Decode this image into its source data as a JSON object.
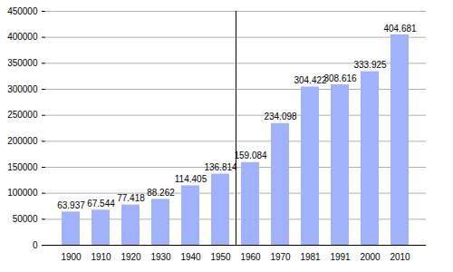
{
  "chart_data": {
    "type": "bar",
    "categories": [
      "1900",
      "1910",
      "1920",
      "1930",
      "1940",
      "1950",
      "1960",
      "1970",
      "1981",
      "1991",
      "2000",
      "2010"
    ],
    "values": [
      63937,
      67544,
      77418,
      88262,
      114405,
      136814,
      159084,
      234098,
      304422,
      308616,
      333925,
      404681
    ],
    "value_labels": [
      "63.937",
      "67.544",
      "77.418",
      "88.262",
      "114.405",
      "136.814",
      "159.084",
      "234.098",
      "304.422",
      "308.616",
      "333.925",
      "404.681"
    ],
    "data_labels": true,
    "color": "#9fb2fb",
    "ylim": [
      0,
      450000
    ],
    "yticks": [
      0,
      50000,
      100000,
      150000,
      200000,
      250000,
      300000,
      350000,
      400000,
      450000
    ],
    "grid": true
  }
}
